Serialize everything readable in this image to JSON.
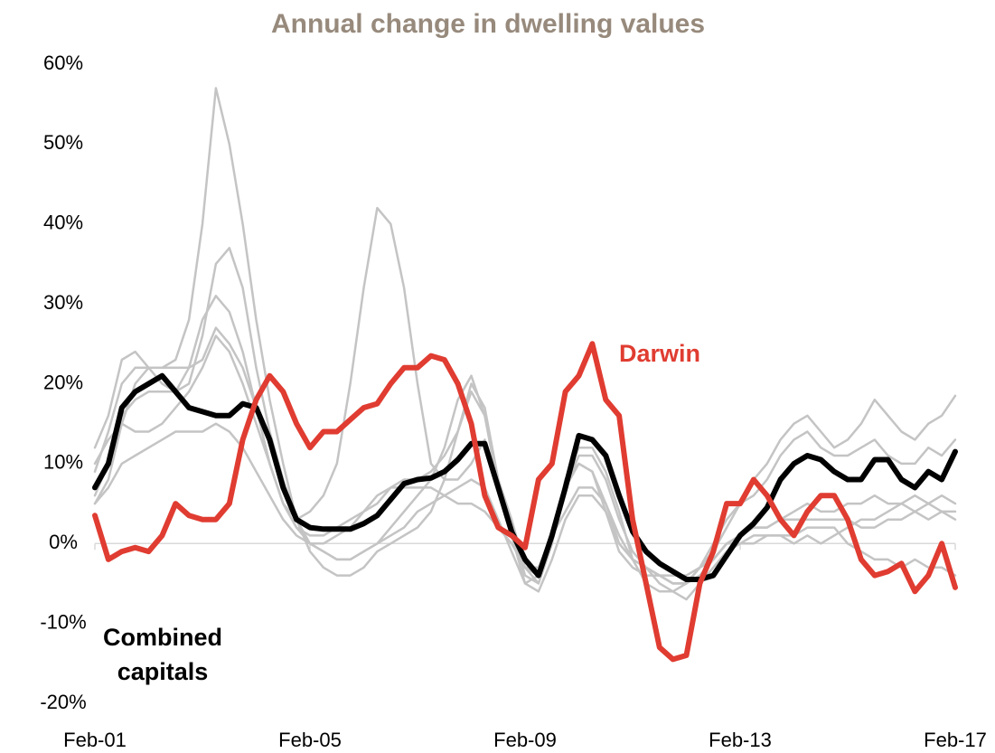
{
  "chart_data": {
    "type": "line",
    "title": "Annual change in dwelling values",
    "categories": [
      "Feb-01",
      null,
      null,
      null,
      null,
      null,
      null,
      null,
      null,
      null,
      null,
      null,
      null,
      null,
      null,
      null,
      "Feb-05",
      null,
      null,
      null,
      null,
      null,
      null,
      null,
      null,
      null,
      null,
      null,
      null,
      null,
      null,
      null,
      "Feb-09",
      null,
      null,
      null,
      null,
      null,
      null,
      null,
      null,
      null,
      null,
      null,
      null,
      null,
      null,
      null,
      "Feb-13",
      null,
      null,
      null,
      null,
      null,
      null,
      null,
      null,
      null,
      null,
      null,
      null,
      null,
      null,
      null,
      "Feb-17"
    ],
    "ylim": [
      -20,
      60
    ],
    "yticks": [
      {
        "value": -20,
        "label": "-20%"
      },
      {
        "value": -10,
        "label": "-10%"
      },
      {
        "value": 0,
        "label": "0%"
      },
      {
        "value": 10,
        "label": "10%"
      },
      {
        "value": 20,
        "label": "20%"
      },
      {
        "value": 30,
        "label": "30%"
      },
      {
        "value": 40,
        "label": "40%"
      },
      {
        "value": 50,
        "label": "50%"
      },
      {
        "value": 60,
        "label": "60%"
      }
    ],
    "grid": false,
    "series": [
      {
        "color": "#c4c4c4",
        "values": [
          9,
          14,
          20,
          22,
          22,
          22,
          23,
          28,
          40,
          57,
          50,
          40,
          28,
          18,
          10,
          3,
          -1,
          -3,
          -4,
          -4,
          -3,
          -1,
          0,
          1,
          2,
          4,
          8,
          14,
          20,
          17,
          8,
          2,
          -4,
          -5,
          0,
          8,
          10,
          9,
          4,
          -1,
          -3,
          -4,
          -4,
          -4,
          -4,
          -3,
          -2,
          0,
          0,
          1,
          1,
          1,
          1,
          2,
          2,
          2,
          0,
          -1,
          -2,
          -2,
          -3,
          -2,
          -3,
          -3,
          -4
        ]
      },
      {
        "color": "#c4c4c4",
        "values": [
          5,
          8,
          15,
          20,
          22,
          22,
          22,
          22,
          23,
          27,
          25,
          22,
          17,
          10,
          5,
          3,
          4,
          6,
          10,
          20,
          32,
          42,
          40,
          32,
          20,
          10,
          8,
          8,
          10,
          13,
          8,
          3,
          -3,
          -5,
          0,
          8,
          12,
          12,
          9,
          4,
          -2,
          -5,
          -6,
          -6,
          -5,
          -3,
          -2,
          0,
          1,
          2,
          2,
          3,
          3,
          3,
          3,
          3,
          3,
          2,
          2,
          3,
          3,
          4,
          3,
          4,
          3
        ]
      },
      {
        "color": "#c4c4c4",
        "values": [
          12,
          16,
          23,
          24,
          22,
          20,
          19,
          20,
          26,
          35,
          37,
          32,
          22,
          14,
          8,
          3,
          0,
          -1,
          -2,
          -2,
          -1,
          0,
          2,
          4,
          6,
          8,
          12,
          18,
          21,
          16,
          7,
          1,
          -5,
          -4,
          1,
          7,
          10,
          9,
          5,
          0,
          -2,
          -3,
          -4,
          -5,
          -5,
          -3,
          -1,
          2,
          5,
          8,
          10,
          13,
          15,
          16,
          14,
          12,
          13,
          15,
          18,
          16,
          14,
          13,
          15,
          16,
          18.5
        ]
      },
      {
        "color": "#c4c4c4",
        "values": [
          6,
          10,
          16,
          18,
          19,
          19,
          19,
          22,
          28,
          31,
          29,
          24,
          17,
          10,
          5,
          2,
          1,
          1,
          2,
          3,
          4,
          5,
          7,
          8,
          8,
          9,
          11,
          14,
          19,
          16,
          8,
          2,
          -3,
          -4,
          1,
          7,
          11,
          11,
          8,
          3,
          -1,
          -3,
          -4,
          -5,
          -5,
          -3,
          0,
          3,
          5,
          6,
          8,
          11,
          13,
          14,
          12,
          11,
          11,
          12,
          13,
          11,
          10,
          10,
          12,
          11,
          13
        ]
      },
      {
        "color": "#c4c4c4",
        "values": [
          10,
          13,
          15,
          14,
          14,
          15,
          17,
          19,
          22,
          26,
          24,
          20,
          15,
          10,
          5,
          2,
          0,
          0,
          1,
          2,
          4,
          6,
          7,
          7,
          7,
          7,
          6,
          5,
          5,
          4,
          2,
          0,
          -3,
          -3,
          1,
          4,
          7,
          7,
          5,
          1,
          -2,
          -3,
          -4,
          -5,
          -5,
          -4,
          -2,
          0,
          1,
          2,
          2,
          3,
          4,
          5,
          4,
          4,
          5,
          5,
          6,
          5,
          5,
          6,
          5,
          6,
          5
        ]
      },
      {
        "color": "#c4c4c4",
        "values": [
          5,
          7,
          10,
          11,
          12,
          13,
          14,
          14,
          14,
          15,
          14,
          12,
          9,
          6,
          3,
          1,
          0,
          -1,
          -2,
          -2,
          -1,
          0,
          1,
          2,
          4,
          5,
          6,
          7,
          8,
          7,
          3,
          -1,
          -5,
          -6,
          -2,
          3,
          6,
          6,
          4,
          0,
          -2,
          -3,
          -5,
          -6,
          -7,
          -5,
          -3,
          -1,
          0,
          0,
          1,
          1,
          0,
          1,
          0,
          1,
          2,
          3,
          3,
          4,
          5,
          4,
          5,
          4,
          4
        ]
      },
      {
        "name": "Combined capitals",
        "color": "#000000",
        "values": [
          7,
          10,
          17,
          19,
          20,
          21,
          19,
          17,
          16.5,
          16,
          16,
          17.5,
          17,
          13,
          7,
          3,
          2,
          1.8,
          1.8,
          1.8,
          2.5,
          3.5,
          5.5,
          7.5,
          8,
          8.2,
          9,
          10.5,
          12.5,
          12.5,
          7,
          1.5,
          -2,
          -4,
          1,
          7,
          13.5,
          13,
          11,
          6,
          1.5,
          -1,
          -2.5,
          -3.5,
          -4.5,
          -4.5,
          -4,
          -1.5,
          1,
          2.5,
          4.5,
          8,
          10,
          11,
          10.5,
          9,
          8,
          8,
          10.5,
          10.5,
          8,
          7,
          9,
          8,
          11.5
        ]
      },
      {
        "name": "Darwin",
        "color": "#e03c31",
        "values": [
          3.5,
          -2,
          -1,
          -0.5,
          -1,
          1,
          5,
          3.5,
          3,
          3,
          5,
          13,
          18,
          21,
          19,
          15,
          12,
          14,
          14,
          15.5,
          17,
          17.5,
          20,
          22,
          22,
          23.5,
          23,
          20,
          15,
          6,
          2,
          1,
          -0.5,
          8,
          10,
          19,
          21,
          25,
          18,
          16,
          3,
          -5,
          -13,
          -14.5,
          -14,
          -5,
          -1,
          5,
          5,
          8,
          6,
          3,
          1,
          4,
          6,
          6,
          3,
          -2,
          -4,
          -3.5,
          -2.5,
          -6,
          -4,
          0,
          -5.5
        ]
      }
    ]
  }
}
